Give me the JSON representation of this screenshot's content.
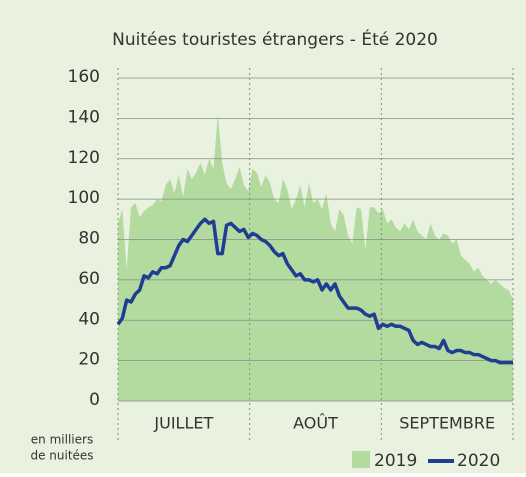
{
  "chart_data": {
    "type": "area-line",
    "title": "Nuitées touristes étrangers - Été 2020",
    "months": [
      "JUILLET",
      "AOÛT",
      "SEPTEMBRE"
    ],
    "note": [
      "en milliers",
      "de nuitées"
    ],
    "ylim": [
      0,
      160
    ],
    "yticks": [
      0,
      20,
      40,
      60,
      80,
      100,
      120,
      140,
      160
    ],
    "grid": true,
    "series": [
      {
        "name": "2019",
        "color": "#b3dba0",
        "values": [
          88,
          95,
          65,
          96,
          98,
          91,
          94,
          96,
          97,
          100,
          99,
          107,
          110,
          103,
          112,
          101,
          115,
          110,
          113,
          118,
          112,
          120,
          115,
          142,
          118,
          108,
          105,
          110,
          116,
          107,
          104,
          115,
          113,
          106,
          112,
          108,
          100,
          98,
          110,
          105,
          95,
          100,
          107,
          96,
          108,
          98,
          100,
          95,
          103,
          88,
          84,
          95,
          92,
          82,
          78,
          96,
          95,
          75,
          96,
          96,
          93,
          95,
          88,
          90,
          86,
          84,
          88,
          85,
          90,
          84,
          82,
          80,
          88,
          82,
          80,
          83,
          82,
          78,
          80,
          72,
          70,
          68,
          64,
          66,
          62,
          60,
          58,
          60,
          58,
          56,
          55,
          50
        ]
      },
      {
        "name": "2020",
        "color": "#1f3d92",
        "values": [
          38,
          41,
          50,
          49,
          53,
          55,
          62,
          61,
          64,
          63,
          66,
          66,
          67,
          72,
          77,
          80,
          79,
          82,
          85,
          88,
          90,
          88,
          89,
          73,
          73,
          87,
          88,
          86,
          84,
          85,
          81,
          83,
          82,
          80,
          79,
          77,
          74,
          72,
          73,
          68,
          65,
          62,
          63,
          60,
          60,
          59,
          60,
          55,
          58,
          55,
          58,
          52,
          49,
          46,
          46,
          46,
          45,
          43,
          42,
          43,
          36,
          38,
          37,
          38,
          37,
          37,
          36,
          35,
          30,
          28,
          29,
          28,
          27,
          27,
          26,
          30,
          25,
          24,
          25,
          25,
          24,
          24,
          23,
          23,
          22,
          21,
          20,
          20,
          19,
          19,
          19,
          19
        ]
      }
    ]
  }
}
